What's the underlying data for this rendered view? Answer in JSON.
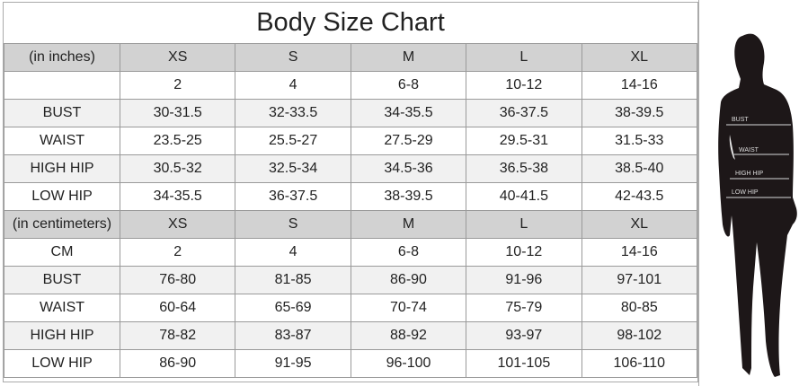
{
  "title": "Body Size Chart",
  "inches": {
    "header": [
      "(in inches)",
      "XS",
      "S",
      "M",
      "L",
      "XL"
    ],
    "rows": [
      [
        "",
        "2",
        "4",
        "6-8",
        "10-12",
        "14-16"
      ],
      [
        "BUST",
        "30-31.5",
        "32-33.5",
        "34-35.5",
        "36-37.5",
        "38-39.5"
      ],
      [
        "WAIST",
        "23.5-25",
        "25.5-27",
        "27.5-29",
        "29.5-31",
        "31.5-33"
      ],
      [
        "HIGH HIP",
        "30.5-32",
        "32.5-34",
        "34.5-36",
        "36.5-38",
        "38.5-40"
      ],
      [
        "LOW HIP",
        "34-35.5",
        "36-37.5",
        "38-39.5",
        "40-41.5",
        "42-43.5"
      ]
    ]
  },
  "centimeters": {
    "header": [
      "(in centimeters)",
      "XS",
      "S",
      "M",
      "L",
      "XL"
    ],
    "rows": [
      [
        "CM",
        "2",
        "4",
        "6-8",
        "10-12",
        "14-16"
      ],
      [
        "BUST",
        "76-80",
        "81-85",
        "86-90",
        "91-96",
        "97-101"
      ],
      [
        "WAIST",
        "60-64",
        "65-69",
        "70-74",
        "75-79",
        "80-85"
      ],
      [
        "HIGH HIP",
        "78-82",
        "83-87",
        "88-92",
        "93-97",
        "98-102"
      ],
      [
        "LOW HIP",
        "86-90",
        "91-95",
        "96-100",
        "101-105",
        "106-110"
      ]
    ]
  },
  "figure": {
    "labels": [
      "BUST",
      "WAIST",
      "HIGH HIP",
      "LOW HIP"
    ]
  }
}
